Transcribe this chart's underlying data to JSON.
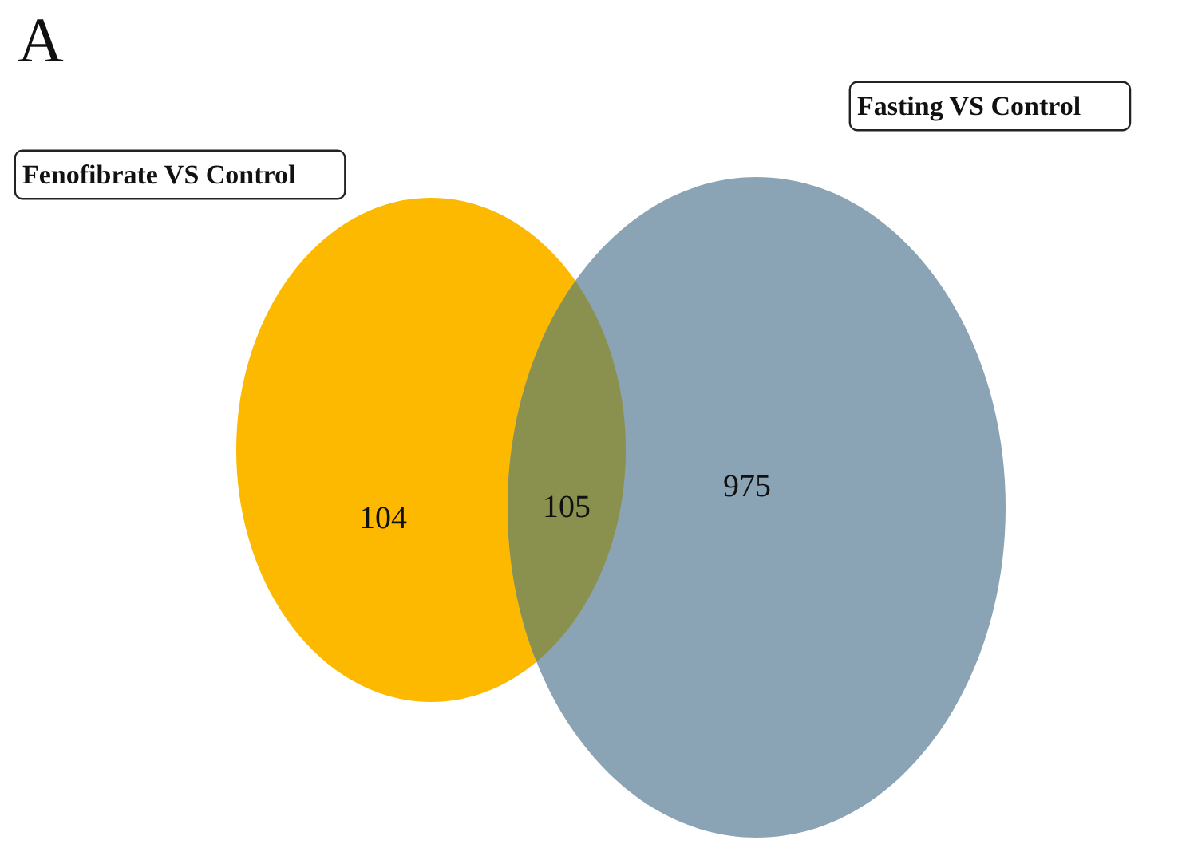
{
  "chart_data": {
    "type": "other",
    "title": "A",
    "categories": [
      null,
      null,
      null
    ],
    "values": [
      104,
      105,
      975
    ],
    "colors": [
      "#fcb900",
      "#8a914e",
      "#8aa3b5"
    ],
    "data_labels": true,
    "annotations": [
      "Fenofibrate VS Control",
      "Fasting VS Control"
    ]
  }
}
